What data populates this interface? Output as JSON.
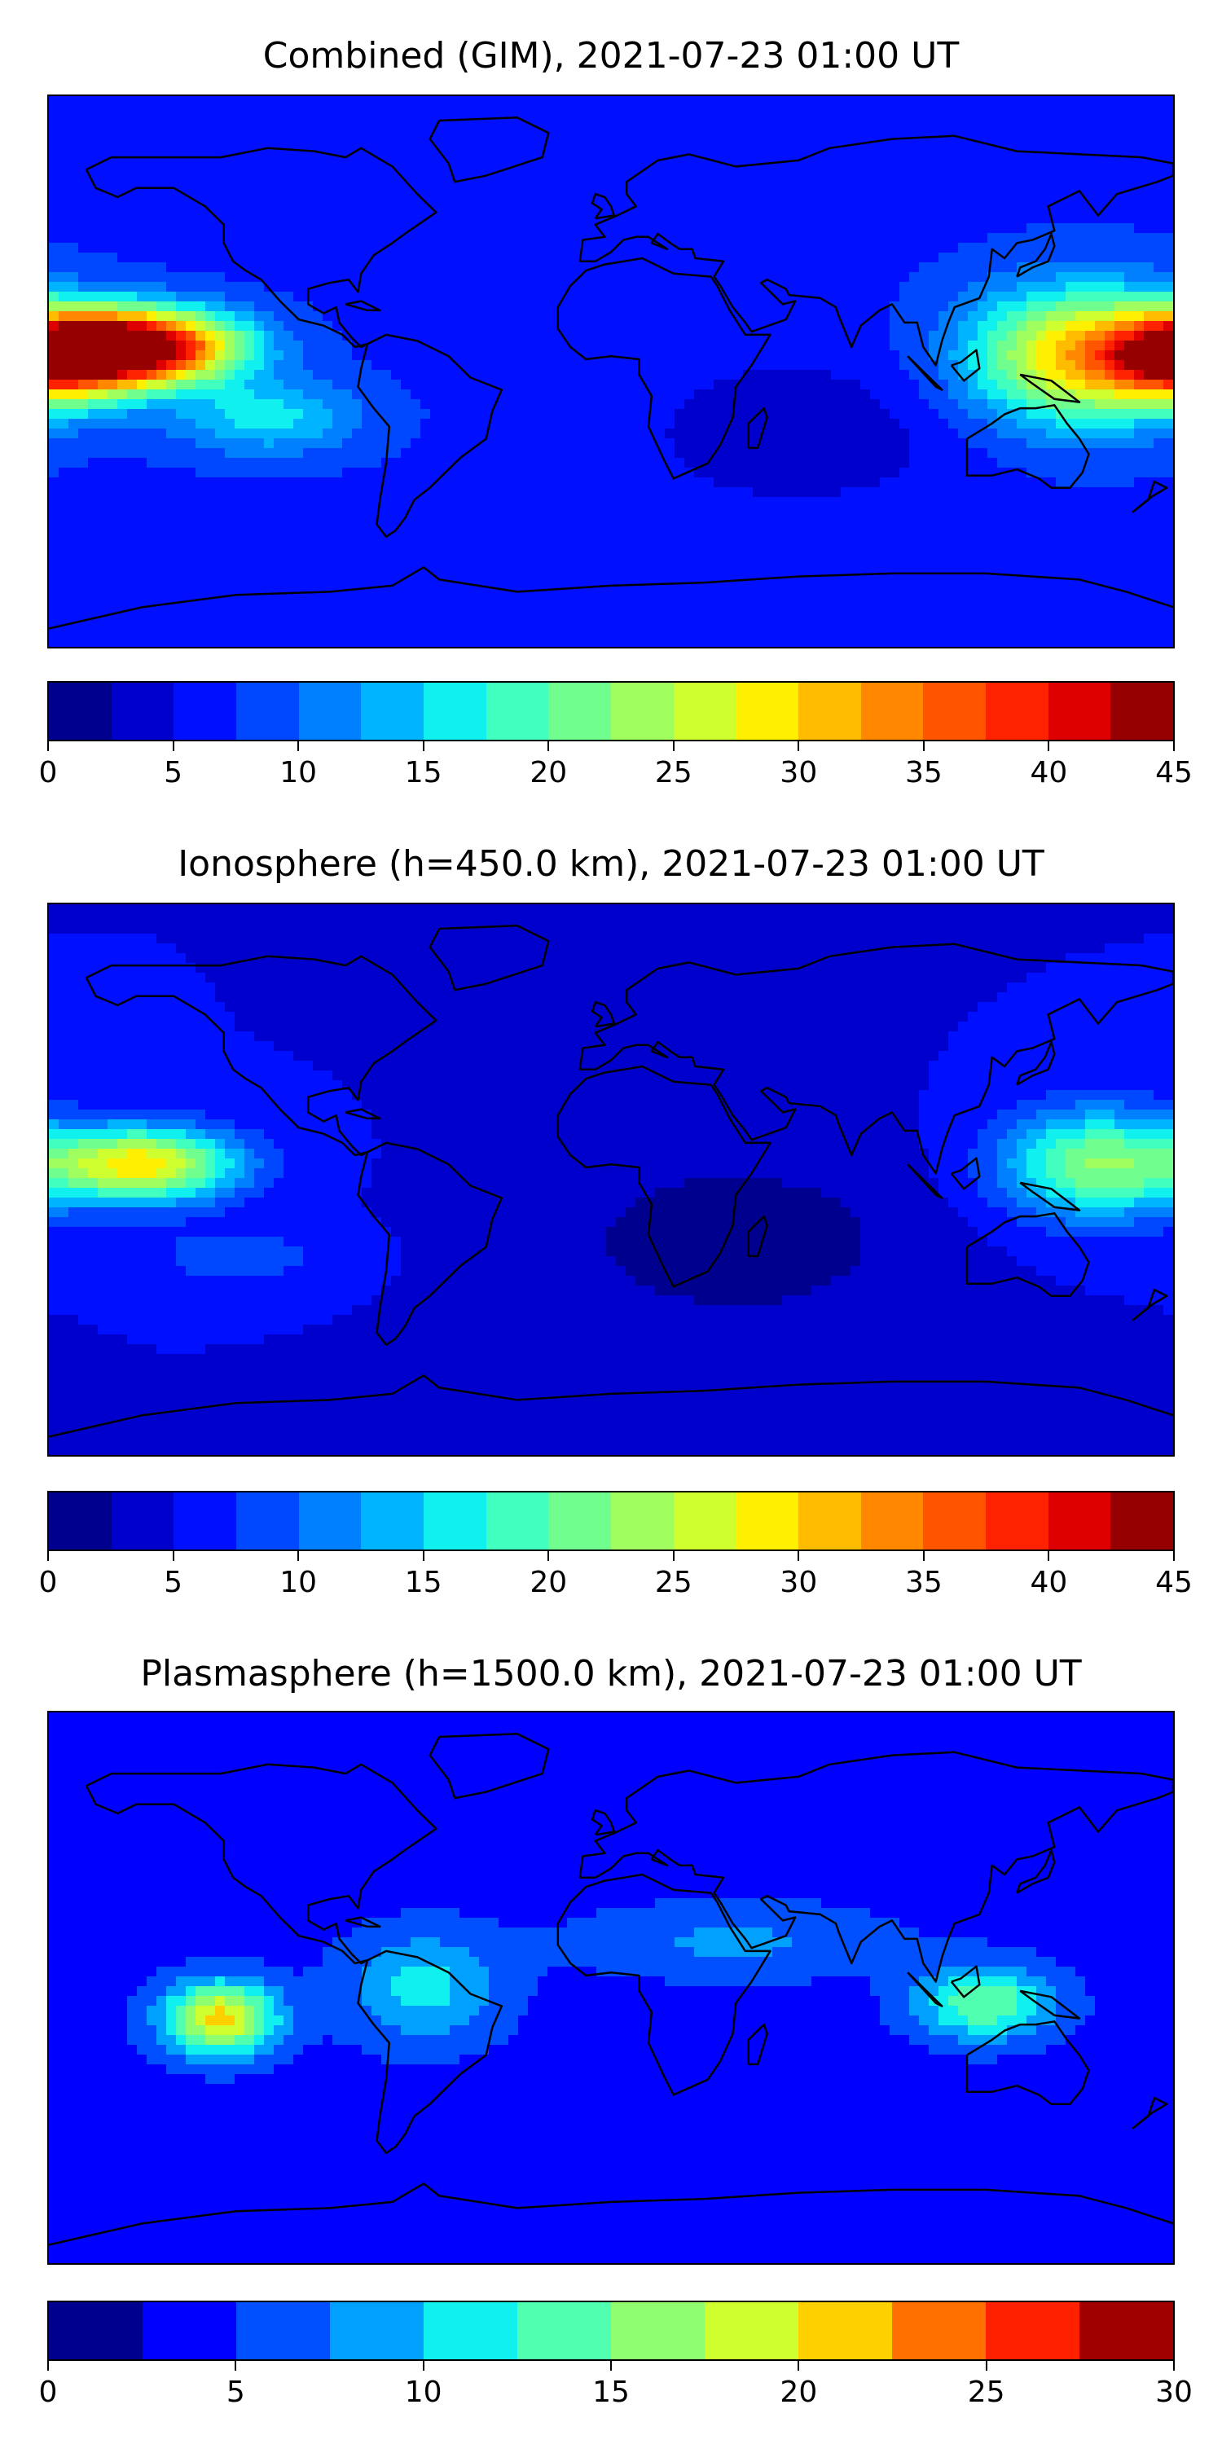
{
  "panels": [
    {
      "title": "Combined (GIM), 2021-07-23 01:00 UT",
      "colorbar": {
        "min": 0,
        "max": 45,
        "step": 2.5,
        "ticks": [
          "0",
          "5",
          "10",
          "15",
          "20",
          "25",
          "30",
          "35",
          "40",
          "45"
        ],
        "colors": [
          "#00008f",
          "#0000cd",
          "#0010ff",
          "#0048ff",
          "#0080ff",
          "#00b4ff",
          "#10f0ee",
          "#40ffbf",
          "#70ff8f",
          "#a0ff5f",
          "#cfff2f",
          "#ffef00",
          "#ffbb00",
          "#ff8800",
          "#ff5500",
          "#ff2200",
          "#de0000",
          "#960000"
        ]
      },
      "field": {
        "background": 7,
        "hotspots": [
          {
            "lon": -148,
            "lat": 8,
            "value": 43,
            "spread_lon": 30,
            "spread_lat": 12
          },
          {
            "lon": -175,
            "lat": 5,
            "value": 36,
            "spread_lon": 25,
            "spread_lat": 14
          },
          {
            "lon": 150,
            "lat": 5,
            "value": 30,
            "spread_lon": 35,
            "spread_lat": 22
          },
          {
            "lon": -110,
            "lat": -15,
            "value": 16,
            "spread_lon": 30,
            "spread_lat": 12
          },
          {
            "lon": 60,
            "lat": -20,
            "value": 3,
            "spread_lon": 50,
            "spread_lat": 25
          }
        ]
      }
    },
    {
      "title": "Ionosphere  (h=450.0 km), 2021-07-23 01:00 UT",
      "colorbar": {
        "min": 0,
        "max": 45,
        "step": 2.5,
        "ticks": [
          "0",
          "5",
          "10",
          "15",
          "20",
          "25",
          "30",
          "35",
          "40",
          "45"
        ],
        "colors": [
          "#00008f",
          "#0000cd",
          "#0010ff",
          "#0048ff",
          "#0080ff",
          "#00b4ff",
          "#10f0ee",
          "#40ffbf",
          "#70ff8f",
          "#a0ff5f",
          "#cfff2f",
          "#ffef00",
          "#ffbb00",
          "#ff8800",
          "#ff5500",
          "#ff2200",
          "#de0000",
          "#960000"
        ]
      },
      "field": {
        "background": 5,
        "hotspots": [
          {
            "lon": -150,
            "lat": 5,
            "value": 29,
            "spread_lon": 30,
            "spread_lat": 12
          },
          {
            "lon": 155,
            "lat": 5,
            "value": 22,
            "spread_lon": 30,
            "spread_lat": 18
          },
          {
            "lon": -120,
            "lat": -25,
            "value": 9,
            "spread_lon": 30,
            "spread_lat": 10
          },
          {
            "lon": 40,
            "lat": -20,
            "value": 1,
            "spread_lon": 60,
            "spread_lat": 30
          }
        ]
      }
    },
    {
      "title": "Plasmasphere (h=1500.0 km), 2021-07-23 01:00 UT",
      "colorbar": {
        "min": 0,
        "max": 30,
        "step": 2.5,
        "ticks": [
          "0",
          "5",
          "10",
          "15",
          "20",
          "25",
          "30"
        ],
        "colors": [
          "#00008f",
          "#0000ff",
          "#0050ff",
          "#00a0ff",
          "#10f0ee",
          "#50ffaf",
          "#90ff6f",
          "#d0ff2f",
          "#ffd000",
          "#ff7000",
          "#ff2000",
          "#a00000"
        ]
      },
      "field": {
        "background": 4,
        "hotspots": [
          {
            "lon": -125,
            "lat": -10,
            "value": 21,
            "spread_lon": 18,
            "spread_lat": 12
          },
          {
            "lon": 120,
            "lat": -5,
            "value": 15,
            "spread_lon": 22,
            "spread_lat": 12
          },
          {
            "lon": -60,
            "lat": 0,
            "value": 11,
            "spread_lon": 25,
            "spread_lat": 18
          },
          {
            "lon": 40,
            "lat": 15,
            "value": 8,
            "spread_lon": 50,
            "spread_lat": 12
          }
        ]
      }
    }
  ]
}
